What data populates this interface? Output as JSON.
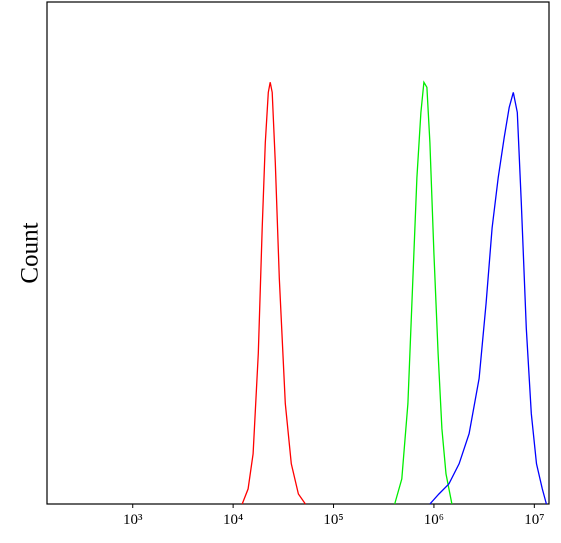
{
  "chart_data": {
    "type": "line",
    "y_label": "Count",
    "xscale": "log",
    "xlim": [
      140,
      14000000
    ],
    "ylim": [
      0,
      100
    ],
    "xticks": [
      {
        "value": 1000,
        "label": "10³"
      },
      {
        "value": 10000,
        "label": "10⁴"
      },
      {
        "value": 100000,
        "label": "10⁵"
      },
      {
        "value": 1000000,
        "label": "10⁶"
      },
      {
        "value": 10000000,
        "label": "10⁷"
      }
    ],
    "series": [
      {
        "color": "#ff0000",
        "x": [
          12300,
          14100,
          15800,
          17800,
          19500,
          20900,
          22400,
          23400,
          24500,
          26300,
          28800,
          33100,
          38000,
          44700,
          52500
        ],
        "values": [
          0,
          3,
          10,
          30,
          55,
          72,
          82,
          84,
          82,
          68,
          45,
          20,
          8,
          2,
          0
        ]
      },
      {
        "color": "#00ee00",
        "x": [
          407000,
          479000,
          550000,
          617000,
          676000,
          741000,
          794000,
          851000,
          912000,
          1000000,
          1100000,
          1200000,
          1320000,
          1510000
        ],
        "values": [
          0,
          5,
          20,
          45,
          65,
          78,
          84,
          83,
          72,
          50,
          30,
          15,
          6,
          0
        ]
      },
      {
        "color": "#0000ff",
        "x": [
          912000,
          1120000,
          1410000,
          1780000,
          2240000,
          2820000,
          3310000,
          3800000,
          4370000,
          5010000,
          5620000,
          6170000,
          6760000,
          7410000,
          8320000,
          9330000,
          10500000,
          12000000,
          13200000
        ],
        "values": [
          0,
          2,
          4,
          8,
          14,
          25,
          40,
          55,
          65,
          73,
          79,
          82,
          78,
          60,
          35,
          18,
          8,
          3,
          0
        ]
      }
    ]
  }
}
